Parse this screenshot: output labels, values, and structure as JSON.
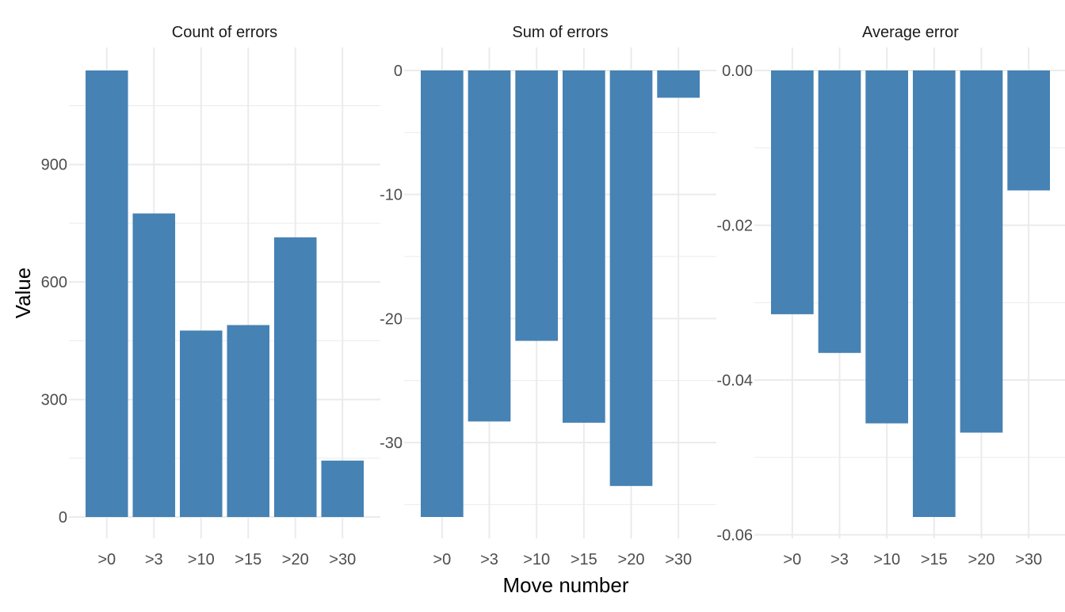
{
  "figure": {
    "ylabel": "Value",
    "xlabel": "Move number",
    "bar_color": "#4682b4",
    "grid_color": "#ebebeb",
    "background": "#ffffff"
  },
  "chart_data": [
    {
      "type": "bar",
      "title": "Count of errors",
      "categories": [
        ">0",
        ">3",
        ">10",
        ">15",
        ">20",
        ">30"
      ],
      "values": [
        1140,
        775,
        476,
        490,
        714,
        144
      ],
      "ylim": [
        0,
        1140
      ],
      "yticks": [
        0,
        300,
        600,
        900
      ],
      "ytick_labels": [
        "0",
        "300",
        "600",
        "900"
      ],
      "grid": true
    },
    {
      "type": "bar",
      "title": "Sum of errors",
      "categories": [
        ">0",
        ">3",
        ">10",
        ">15",
        ">20",
        ">30"
      ],
      "values": [
        -36.0,
        -28.3,
        -21.8,
        -28.4,
        -33.5,
        -2.2
      ],
      "ylim": [
        -36.0,
        0
      ],
      "yticks": [
        0,
        -10,
        -20,
        -30
      ],
      "ytick_labels": [
        "0",
        "-10",
        "-20",
        "-30"
      ],
      "grid": true
    },
    {
      "type": "bar",
      "title": "Average error",
      "categories": [
        ">0",
        ">3",
        ">10",
        ">15",
        ">20",
        ">30"
      ],
      "values": [
        -0.0315,
        -0.0365,
        -0.0456,
        -0.0577,
        -0.0468,
        -0.0155
      ],
      "ylim": [
        -0.0577,
        0
      ],
      "yticks": [
        0,
        -0.02,
        -0.04,
        -0.06
      ],
      "ytick_labels": [
        "0.00",
        "-0.02",
        "-0.04",
        "-0.06"
      ],
      "grid": true
    }
  ]
}
